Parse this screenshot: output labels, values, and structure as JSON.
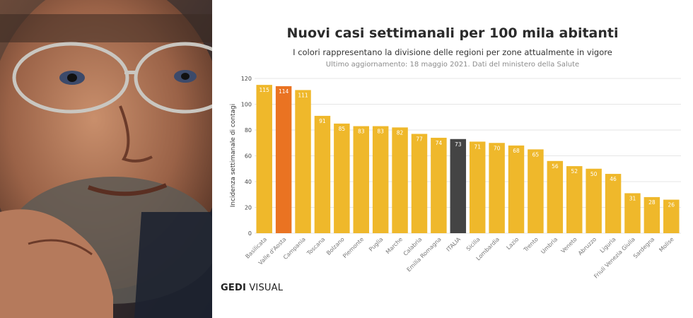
{
  "header": {
    "title": "Nuovi casi settimanali per 100 mila abitanti",
    "subtitle": "I colori rappresentano la divisione delle regioni per zone attualmente in vigore",
    "update": "Ultimo aggiornamento: 18 maggio 2021. Dati del ministero della Salute"
  },
  "brand": {
    "bold": "GEDI",
    "thin": " VISUAL"
  },
  "colors": {
    "yellow": "#efb82b",
    "orange": "#ea7322",
    "italia": "#444444",
    "red_accent": "#d9261c"
  },
  "chart_data": {
    "type": "bar",
    "title": "Nuovi casi settimanali per 100 mila abitanti",
    "xlabel": "",
    "ylabel": "Incidenza settimanale di contagi",
    "ylim": [
      0,
      120
    ],
    "yticks": [
      0,
      20,
      40,
      60,
      80,
      100,
      120
    ],
    "grid": true,
    "categories": [
      "Basilicata",
      "Valle d'Aosta",
      "Campania",
      "Toscana",
      "Bolzano",
      "Piemonte",
      "Puglia",
      "Marche",
      "Calabria",
      "Emilia Romagna",
      "ITALIA",
      "Sicilia",
      "Lombardia",
      "Lazio",
      "Trento",
      "Umbria",
      "Veneto",
      "Abruzzo",
      "Liguria",
      "Friuli Venezia Giulia",
      "Sardegna",
      "Molise"
    ],
    "values": [
      115,
      114,
      111,
      91,
      85,
      83,
      83,
      82,
      77,
      74,
      73,
      71,
      70,
      68,
      65,
      56,
      52,
      50,
      46,
      31,
      28,
      26
    ],
    "bar_colors": [
      "#efb82b",
      "#ea7322",
      "#efb82b",
      "#efb82b",
      "#efb82b",
      "#efb82b",
      "#efb82b",
      "#efb82b",
      "#efb82b",
      "#efb82b",
      "#444444",
      "#efb82b",
      "#efb82b",
      "#efb82b",
      "#efb82b",
      "#efb82b",
      "#efb82b",
      "#efb82b",
      "#efb82b",
      "#efb82b",
      "#efb82b",
      "#efb82b"
    ]
  }
}
